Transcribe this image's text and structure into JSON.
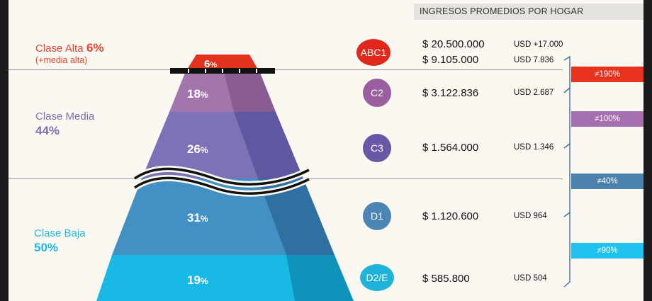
{
  "header": {
    "title": "INGRESOS PROMEDIOS POR HOGAR"
  },
  "classes": [
    {
      "name": "Clase Alta",
      "percent": "6%",
      "note": "(+media alta)",
      "color": "#e2452f"
    },
    {
      "name": "Clase Media",
      "percent": "44%",
      "color": "#7b6fb3"
    },
    {
      "name": "Clase Baja",
      "percent": "50%",
      "color": "#1fb8e3"
    }
  ],
  "pyramid": {
    "segments": [
      {
        "num": "6",
        "unit": "%",
        "color": "#e2321e"
      },
      {
        "num": "18",
        "unit": "%",
        "color": "#a276ad"
      },
      {
        "num": "26",
        "unit": "%",
        "color": "#7b72b8"
      },
      {
        "num": "31",
        "unit": "%",
        "color": "#4390c4"
      },
      {
        "num": "19",
        "unit": "%",
        "color": "#19b9e6"
      }
    ]
  },
  "groups": [
    {
      "label": "ABC1",
      "color": "#e0291c",
      "incomes": [
        "$ 20.500.000",
        "$ 9.105.000"
      ],
      "usd": [
        "USD +17.000",
        "USD 7.836"
      ]
    },
    {
      "label": "C2",
      "color": "#9a5f9e",
      "incomes": [
        "$ 3.122.836"
      ],
      "usd": [
        "USD 2.687"
      ]
    },
    {
      "label": "C3",
      "color": "#6a57a6",
      "incomes": [
        "$ 1.564.000"
      ],
      "usd": [
        "USD 1.346"
      ]
    },
    {
      "label": "D1",
      "color": "#4a85b5",
      "incomes": [
        "$ 1.120.600"
      ],
      "usd": [
        "USD 964"
      ]
    },
    {
      "label": "D2/E",
      "color": "#1fb3d9",
      "incomes": [
        "$ 585.800"
      ],
      "usd": [
        "USD 504"
      ]
    }
  ],
  "gaps": [
    {
      "label": "≠190%",
      "color": "#e8331f"
    },
    {
      "label": "≠100%",
      "color": "#a66fb0"
    },
    {
      "label": "≠40%",
      "color": "#4b82ad"
    },
    {
      "label": "≠90%",
      "color": "#1fc1ee"
    }
  ]
}
